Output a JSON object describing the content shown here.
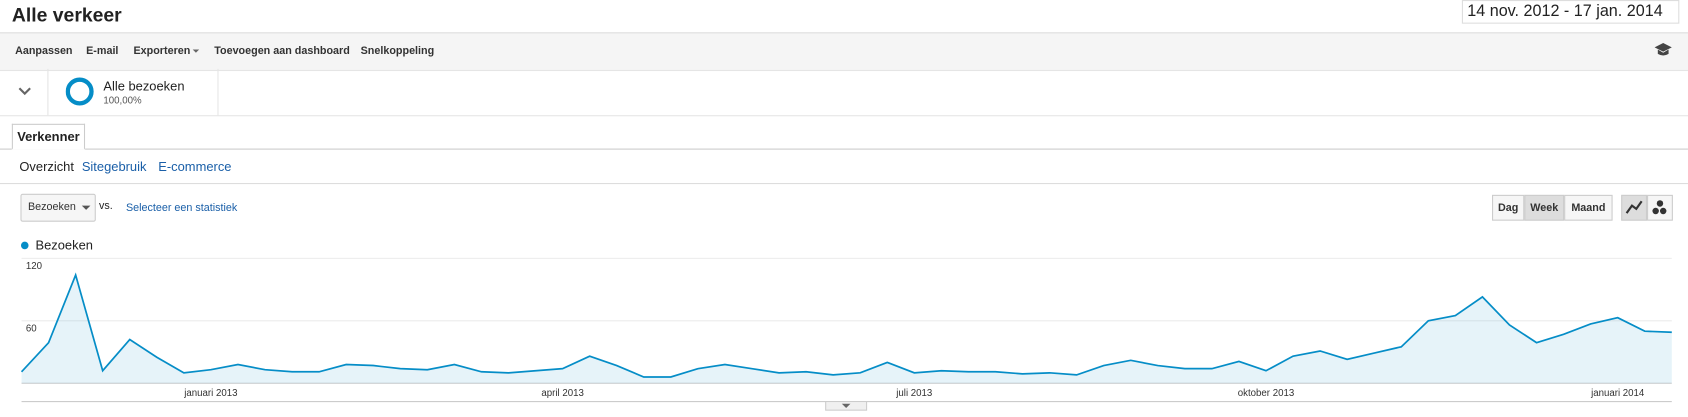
{
  "header": {
    "title": "Alle verkeer",
    "date_range": "14 nov. 2012 - 17 jan. 2014"
  },
  "toolbar": [
    "Aanpassen",
    "E-mail",
    "Exporteren",
    "Toevoegen aan dashboard",
    "Snelkoppeling"
  ],
  "segment": {
    "name": "Alle bezoeken",
    "share": "100,00%"
  },
  "tab": "Verkenner",
  "subtabs": [
    "Overzicht",
    "Sitegebruik",
    "E-commerce"
  ],
  "controls": {
    "metric": "Bezoeken",
    "vs": "vs.",
    "compare": "Selecteer een statistiek",
    "periods": [
      "Dag",
      "Week",
      "Maand"
    ]
  },
  "chart_data": {
    "type": "line",
    "categories": [
      null,
      null,
      null,
      null,
      null,
      null,
      null,
      "januari 2013",
      null,
      null,
      null,
      null,
      null,
      null,
      null,
      null,
      null,
      null,
      null,
      null,
      "april 2013",
      null,
      null,
      null,
      null,
      null,
      null,
      null,
      null,
      null,
      null,
      null,
      null,
      "juli 2013",
      null,
      null,
      null,
      null,
      null,
      null,
      null,
      null,
      null,
      null,
      null,
      null,
      "oktober 2013",
      null,
      null,
      null,
      null,
      null,
      null,
      null,
      null,
      null,
      null,
      null,
      null,
      "januari 2014",
      null,
      null
    ],
    "series": [
      {
        "name": "Bezoeken",
        "color": "#058dc7",
        "values": [
          11,
          39,
          104,
          12,
          42,
          25,
          10,
          13,
          18,
          13,
          11,
          11,
          18,
          17,
          14,
          13,
          18,
          11,
          10,
          12,
          14,
          26,
          17,
          6,
          6,
          14,
          18,
          14,
          10,
          11,
          8,
          10,
          20,
          10,
          12,
          11,
          11,
          9,
          10,
          8,
          17,
          22,
          17,
          14,
          14,
          21,
          12,
          26,
          31,
          23,
          29,
          35,
          60,
          65,
          83,
          56,
          39,
          47,
          57,
          63,
          50,
          49
        ]
      }
    ],
    "ylim": [
      0,
      120
    ],
    "yticks": [
      60,
      120
    ],
    "grid": true
  }
}
